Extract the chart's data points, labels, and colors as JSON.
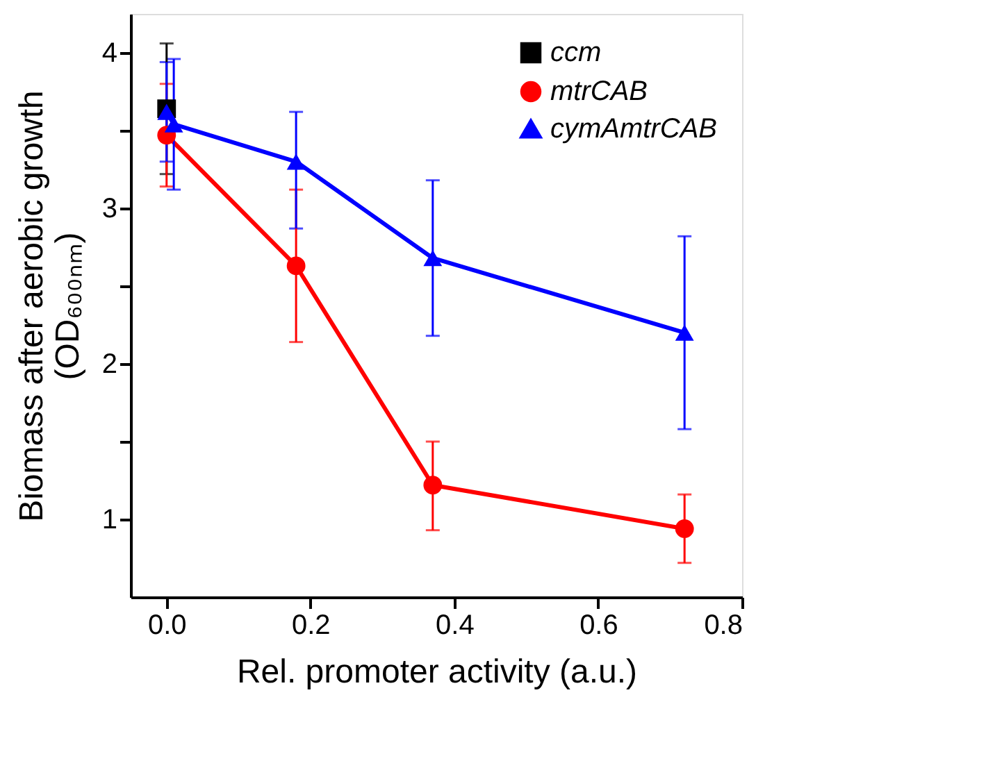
{
  "chart_data": {
    "type": "line",
    "xlabel": "Rel. promoter activity (a.u.)",
    "ylabel": "Biomass after aerobic growth\n(OD₆₀₀ₙₘ)",
    "xlim": [
      -0.05,
      0.8
    ],
    "xticks": [
      {
        "value": 0,
        "label": "0.0"
      },
      0.2,
      0.4,
      0.6,
      0.8
    ],
    "ylim": [
      0.5,
      4.25
    ],
    "yticks": [
      1,
      {
        "value": 1.5,
        "label": null
      },
      2,
      {
        "value": 2.5,
        "label": null
      },
      3,
      {
        "value": 3.5,
        "label": null
      },
      4
    ],
    "grid": false,
    "legend": "top right",
    "line_style": "solid",
    "series": [
      {
        "name": "ccm",
        "color": "#000000",
        "marker": "square",
        "x": [
          0
        ],
        "values": [
          3.64
        ],
        "errors": [
          0.42
        ]
      },
      {
        "name": "mtrCAB",
        "color": "#ff0000",
        "marker": "circle",
        "x": [
          0,
          0.18,
          0.37,
          0.72
        ],
        "values": [
          3.47,
          2.63,
          1.22,
          0.94
        ],
        "errors": [
          0.33,
          0.49,
          [
            0.93,
            1.5
          ],
          [
            0.72,
            1.16
          ]
        ]
      },
      {
        "name": "cymAmtrCAB",
        "color": "#0000ff",
        "marker": "triangle",
        "x": [
          0,
          0.01,
          0.18,
          0.37,
          0.72
        ],
        "values": [
          3.62,
          3.54,
          3.3,
          2.68,
          2.2
        ],
        "errors": [
          0.32,
          0.42,
          [
            2.87,
            3.62
          ],
          0.5,
          [
            1.58,
            2.82
          ]
        ]
      }
    ]
  }
}
